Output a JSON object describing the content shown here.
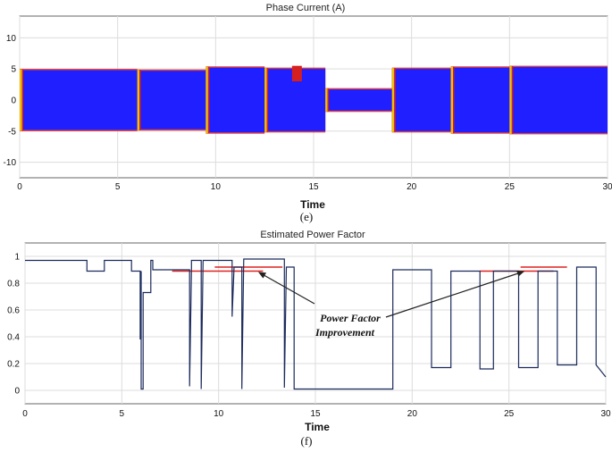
{
  "chart_data": [
    {
      "type": "line",
      "title": "Phase Current (A)",
      "xlabel": "Time",
      "ylabel": "",
      "caption": "(e)",
      "xlim": [
        0,
        30
      ],
      "ylim": [
        -12.5,
        13.5
      ],
      "xticks": [
        "0",
        "5",
        "10",
        "15",
        "20",
        "25",
        "30"
      ],
      "yticks": [
        "10",
        "5",
        "0",
        "-5",
        "-10"
      ],
      "grid": true,
      "colors": {
        "main": "#1f1fff",
        "secondary": "#d62020",
        "tertiary": "#f2c200"
      },
      "segments": [
        {
          "start": 0.0,
          "end": 6.0,
          "amplitude": 4.8
        },
        {
          "start": 6.0,
          "end": 9.5,
          "amplitude": 4.7
        },
        {
          "start": 9.5,
          "end": 12.5,
          "amplitude": 5.2
        },
        {
          "start": 12.5,
          "end": 15.6,
          "amplitude": 5.0
        },
        {
          "start": 15.6,
          "end": 19.0,
          "amplitude": 1.7
        },
        {
          "start": 19.0,
          "end": 22.0,
          "amplitude": 5.0
        },
        {
          "start": 22.0,
          "end": 25.0,
          "amplitude": 5.2
        },
        {
          "start": 25.0,
          "end": 30.0,
          "amplitude": 5.3
        }
      ]
    },
    {
      "type": "line",
      "title": "Estimated Power Factor",
      "xlabel": "Time",
      "ylabel": "",
      "caption": "(f)",
      "xlim": [
        0,
        30
      ],
      "ylim": [
        -0.1,
        1.1
      ],
      "xticks": [
        "0",
        "5",
        "10",
        "15",
        "20",
        "25",
        "30"
      ],
      "yticks": [
        "1",
        "0.8",
        "0.6",
        "0.4",
        "0.2",
        "0"
      ],
      "grid": true,
      "colors": {
        "line": "#1b2a5c",
        "marker": "#e02020"
      },
      "series": [
        {
          "x": [
            0,
            3.2,
            3.2,
            4.1,
            4.1,
            5.5,
            5.5,
            5.95,
            5.95,
            6.0,
            6.0,
            6.1,
            6.1,
            6.5,
            6.5,
            6.6,
            6.6,
            8.5,
            8.5,
            8.6,
            8.6,
            9.1,
            9.1,
            9.2,
            9.2,
            10.7,
            10.7,
            10.8,
            10.8,
            11.2,
            11.2,
            11.3,
            11.3,
            13.4,
            13.4,
            13.5,
            13.5,
            13.9,
            13.9,
            14.0,
            14.0,
            19.0,
            19.0,
            21.0,
            21.0,
            22.0,
            22.0,
            23.5,
            23.5,
            24.2,
            24.2,
            25.5,
            25.5,
            26.5,
            26.5,
            27.5,
            27.5,
            28.5,
            28.5,
            29.5,
            29.5,
            30.0
          ],
          "y": [
            0.97,
            0.97,
            0.89,
            0.89,
            0.97,
            0.97,
            0.89,
            0.89,
            0.38,
            0.89,
            0.01,
            0.01,
            0.73,
            0.73,
            0.97,
            0.97,
            0.9,
            0.9,
            0.03,
            0.9,
            0.97,
            0.97,
            0.01,
            0.97,
            0.97,
            0.97,
            0.55,
            0.92,
            0.92,
            0.92,
            0.01,
            0.98,
            0.98,
            0.98,
            0.02,
            0.92,
            0.92,
            0.92,
            0.01,
            0.01,
            0.01,
            0.01,
            0.9,
            0.9,
            0.17,
            0.17,
            0.89,
            0.89,
            0.16,
            0.16,
            0.89,
            0.89,
            0.17,
            0.17,
            0.89,
            0.89,
            0.19,
            0.19,
            0.92,
            0.92,
            0.19,
            0.1
          ]
        }
      ],
      "markers": [
        {
          "x0": 7.6,
          "x1": 12.3,
          "y": 0.89
        },
        {
          "x0": 9.8,
          "x1": 13.3,
          "y": 0.92
        },
        {
          "x0": 23.5,
          "x1": 27.3,
          "y": 0.89
        },
        {
          "x0": 25.6,
          "x1": 28.0,
          "y": 0.92
        }
      ],
      "annotation": {
        "line1": "Power Factor",
        "line2": "Improvement"
      }
    }
  ]
}
